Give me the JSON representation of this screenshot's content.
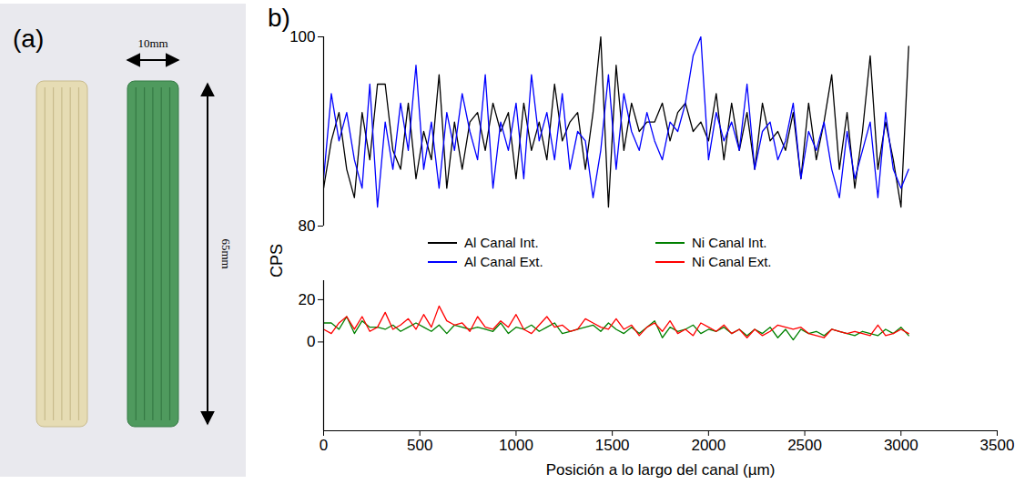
{
  "photo": {
    "label": "(a)",
    "width_label": "10mm",
    "length_label": "65mm"
  },
  "chart_data": {
    "type": "line",
    "panel": "b)",
    "x_label": "Posición a lo largo del canal (µm)",
    "y_label": "CPS",
    "xlim": [
      0,
      3500
    ],
    "xticks": [
      0,
      500,
      1000,
      1500,
      2000,
      2500,
      3000,
      3500
    ],
    "y_segments": [
      {
        "ylim": [
          80,
          100
        ],
        "yticks": [
          80,
          100
        ]
      },
      {
        "ylim": [
          -42,
          29
        ],
        "yticks": [
          0,
          20
        ]
      }
    ],
    "grid": false,
    "legend": "center",
    "x": [
      0,
      40,
      80,
      120,
      160,
      200,
      240,
      280,
      320,
      360,
      400,
      440,
      480,
      520,
      560,
      600,
      640,
      680,
      720,
      760,
      800,
      840,
      880,
      920,
      960,
      1000,
      1040,
      1080,
      1120,
      1160,
      1200,
      1240,
      1280,
      1320,
      1360,
      1400,
      1440,
      1480,
      1520,
      1560,
      1600,
      1640,
      1680,
      1720,
      1760,
      1800,
      1840,
      1880,
      1920,
      1960,
      2000,
      2040,
      2080,
      2120,
      2160,
      2200,
      2240,
      2280,
      2320,
      2360,
      2400,
      2440,
      2480,
      2520,
      2560,
      2600,
      2640,
      2680,
      2720,
      2760,
      2800,
      2840,
      2880,
      2920,
      2960,
      3000,
      3040
    ],
    "series": [
      {
        "name": "Al Canal Int.",
        "color": "#000000",
        "values": [
          84,
          89,
          92,
          86,
          83,
          92,
          87,
          95,
          95,
          88,
          86,
          93,
          85,
          90,
          87,
          96,
          84,
          91,
          86,
          91,
          92,
          88,
          93,
          90,
          92,
          85,
          93,
          88,
          91,
          87,
          95,
          89,
          91,
          92,
          86,
          92,
          100,
          82,
          97,
          88,
          93,
          90,
          91,
          91,
          93,
          89,
          92,
          93,
          90,
          91,
          89,
          94,
          87,
          93,
          88,
          92,
          86,
          93,
          89,
          90,
          88,
          92,
          85,
          93,
          87,
          91,
          96,
          86,
          92,
          84,
          90,
          98,
          86,
          91,
          87,
          82,
          99
        ]
      },
      {
        "name": "Al Canal Ext.",
        "color": "#0000ff",
        "values": [
          85,
          94,
          89,
          92,
          87,
          84,
          95,
          82,
          91,
          86,
          93,
          88,
          97,
          86,
          91,
          84,
          92,
          88,
          94,
          90,
          87,
          96,
          84,
          91,
          88,
          93,
          85,
          96,
          89,
          92,
          87,
          94,
          86,
          90,
          89,
          83,
          88,
          96,
          86,
          94,
          90,
          88,
          92,
          89,
          87,
          91,
          90,
          93,
          98,
          100,
          87,
          92,
          89,
          91,
          88,
          95,
          86,
          90,
          91,
          87,
          89,
          93,
          85,
          90,
          88,
          91,
          86,
          83,
          90,
          85,
          88,
          91,
          83,
          92,
          86,
          84,
          86
        ]
      },
      {
        "name": "Ni Canal Int.",
        "color": "#008000",
        "values": [
          9,
          9,
          6,
          12,
          4,
          10,
          7,
          7,
          6,
          8,
          5,
          7,
          9,
          7,
          5,
          8,
          4,
          8,
          7,
          6,
          7,
          6,
          5,
          9,
          4,
          7,
          6,
          8,
          5,
          7,
          9,
          4,
          5,
          6,
          7,
          8,
          5,
          9,
          6,
          4,
          7,
          4,
          7,
          10,
          2,
          7,
          5,
          6,
          8,
          4,
          6,
          5,
          7,
          4,
          6,
          3,
          6,
          4,
          7,
          2,
          6,
          1,
          6,
          4,
          5,
          3,
          6,
          5,
          4,
          3,
          5,
          4,
          3,
          6,
          4,
          7,
          3
        ]
      },
      {
        "name": "Ni Canal Ext.",
        "color": "#ff0000",
        "values": [
          6,
          4,
          9,
          12,
          6,
          12,
          5,
          7,
          14,
          6,
          8,
          11,
          6,
          13,
          7,
          17,
          10,
          8,
          9,
          5,
          12,
          7,
          6,
          10,
          7,
          13,
          6,
          4,
          8,
          12,
          7,
          8,
          5,
          6,
          11,
          9,
          7,
          6,
          11,
          6,
          8,
          3,
          7,
          9,
          5,
          10,
          4,
          6,
          3,
          9,
          7,
          5,
          8,
          4,
          6,
          2,
          6,
          3,
          5,
          8,
          7,
          6,
          7,
          4,
          3,
          2,
          6,
          5,
          4,
          5,
          4,
          3,
          8,
          3,
          4,
          6,
          4
        ]
      }
    ]
  }
}
